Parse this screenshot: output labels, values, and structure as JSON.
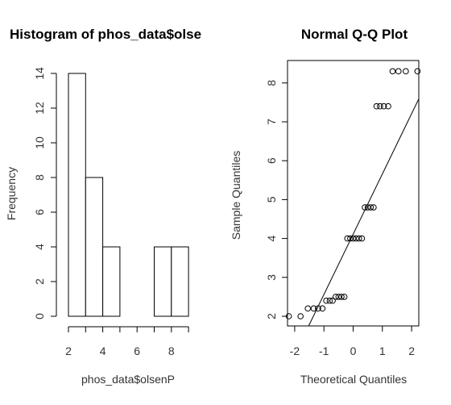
{
  "chart_data": [
    {
      "type": "bar",
      "title": "Histogram of phos_data$olse",
      "xlabel": "phos_data$olsenP",
      "ylabel": "Frequency",
      "bins": [
        [
          2,
          3
        ],
        [
          3,
          4
        ],
        [
          4,
          5
        ],
        [
          5,
          6
        ],
        [
          6,
          7
        ],
        [
          7,
          8
        ],
        [
          8,
          9
        ]
      ],
      "values": [
        14,
        8,
        4,
        0,
        0,
        4,
        4
      ],
      "xticks": [
        "2",
        "4",
        "6",
        "8"
      ],
      "yticks": [
        "0",
        "2",
        "4",
        "6",
        "8",
        "10",
        "12",
        "14"
      ],
      "xlim": [
        2,
        9
      ],
      "ylim": [
        0,
        14
      ],
      "grid": false
    },
    {
      "type": "scatter",
      "title": "Normal Q-Q Plot",
      "xlabel": "Theoretical Quantiles",
      "ylabel": "Sample Quantiles",
      "xticks": [
        "-2",
        "-1",
        "0",
        "1",
        "2"
      ],
      "yticks": [
        "2",
        "3",
        "4",
        "5",
        "6",
        "7",
        "8"
      ],
      "xlim": [
        -2.4,
        2.4
      ],
      "ylim": [
        1.75,
        8.55
      ],
      "points": [
        [
          -2.2,
          2.0
        ],
        [
          -1.8,
          2.0
        ],
        [
          -1.55,
          2.2
        ],
        [
          -1.35,
          2.2
        ],
        [
          -1.2,
          2.2
        ],
        [
          -1.05,
          2.2
        ],
        [
          -0.92,
          2.4
        ],
        [
          -0.8,
          2.4
        ],
        [
          -0.7,
          2.4
        ],
        [
          -0.6,
          2.5
        ],
        [
          -0.5,
          2.5
        ],
        [
          -0.4,
          2.5
        ],
        [
          -0.3,
          2.5
        ],
        [
          -0.2,
          4.0
        ],
        [
          -0.1,
          4.0
        ],
        [
          0.0,
          4.0
        ],
        [
          0.1,
          4.0
        ],
        [
          0.2,
          4.0
        ],
        [
          0.3,
          4.0
        ],
        [
          0.4,
          4.8
        ],
        [
          0.5,
          4.8
        ],
        [
          0.6,
          4.8
        ],
        [
          0.7,
          4.8
        ],
        [
          0.8,
          7.4
        ],
        [
          0.92,
          7.4
        ],
        [
          1.05,
          7.4
        ],
        [
          1.2,
          7.4
        ],
        [
          1.35,
          8.3
        ],
        [
          1.55,
          8.3
        ],
        [
          1.8,
          8.3
        ],
        [
          2.2,
          8.3
        ]
      ],
      "qqline": {
        "intercept": 4.11,
        "slope": 1.55
      },
      "grid": false
    }
  ]
}
